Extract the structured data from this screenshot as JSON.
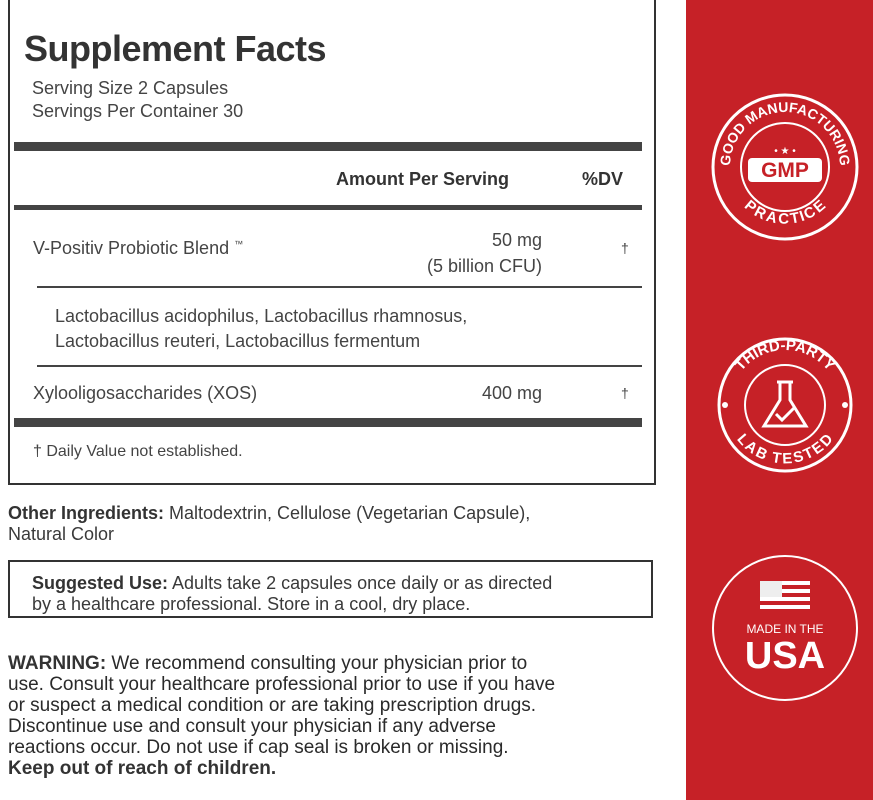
{
  "facts": {
    "title": "Supplement Facts",
    "serving_size": "Serving Size 2 Capsules",
    "servings_per_container": "Servings Per Container 30",
    "header_amount": "Amount Per Serving",
    "header_dv": "%DV",
    "rows": [
      {
        "name": "V-Positiv Probiotic Blend",
        "tm": "™",
        "amount": "50 mg",
        "amount2": "(5 billion CFU)",
        "dv": "†"
      },
      {
        "strains1": "Lactobacillus acidophilus, Lactobacillus rhamnosus,",
        "strains2": "Lactobacillus reuteri, Lactobacillus fermentum"
      },
      {
        "name": "Xylooligosaccharides (XOS)",
        "amount": "400 mg",
        "dv": "†"
      }
    ],
    "footnote": "† Daily Value not established."
  },
  "other": {
    "label": "Other Ingredients:",
    "text": " Maltodextrin, Cellulose (Vegetarian Capsule),",
    "text2": "Natural Color"
  },
  "suggested": {
    "label": "Suggested Use:",
    "text": " Adults take 2 capsules once daily or as directed",
    "text2": "by a healthcare professional. Store in a cool, dry place."
  },
  "warning": {
    "label": "WARNING:",
    "lines": [
      " We recommend consulting your physician prior to",
      "use. Consult your healthcare professional prior to use if you have",
      "or suspect a medical condition or are taking prescription drugs.",
      "Discontinue use and consult your physician if any adverse",
      "reactions occur. Do not use if cap seal is broken or missing."
    ],
    "last": "Keep out of reach of children."
  },
  "badges": {
    "gmp": {
      "top": "GOOD MANUFACTURING",
      "center": "GMP",
      "bottom": "PRACTICE"
    },
    "lab": {
      "top": "THIRD-PARTY",
      "bottom": "LAB TESTED",
      "icon": "flask-check-icon"
    },
    "usa": {
      "small": "MADE IN THE",
      "big": "USA",
      "icon": "us-flag-icon"
    }
  },
  "colors": {
    "red": "#c62127",
    "text": "#333333"
  }
}
